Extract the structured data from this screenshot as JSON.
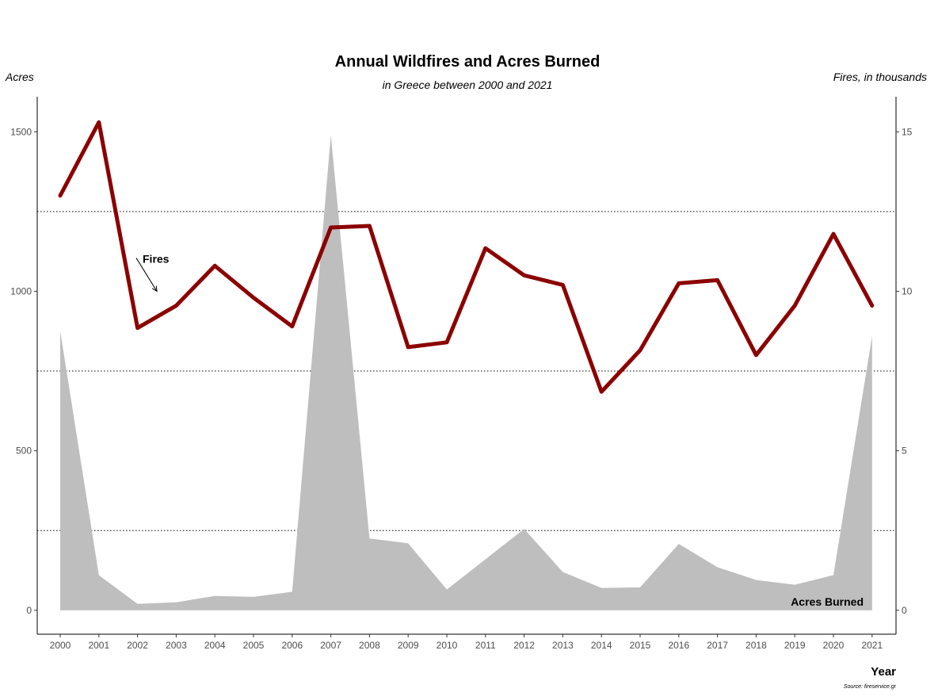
{
  "chart_data": {
    "type": "line",
    "title": "Annual Wildfires and Acres Burned",
    "subtitle": "in Greece between 2000 and 2021",
    "ylabel_left": "Acres",
    "ylabel_right": "Fires, in thousands",
    "xlabel": "Year",
    "caption": "Source: fireservice.gr",
    "x": [
      2000,
      2001,
      2002,
      2003,
      2004,
      2005,
      2006,
      2007,
      2008,
      2009,
      2010,
      2011,
      2012,
      2013,
      2014,
      2015,
      2016,
      2017,
      2018,
      2019,
      2020,
      2021
    ],
    "ylim_left": [
      -75,
      1610
    ],
    "ylim_right": [
      -0.75,
      16.1
    ],
    "yticks_left": [
      0,
      500,
      1000,
      1500
    ],
    "yticks_right": [
      0,
      5,
      10,
      15
    ],
    "gridlines_left": [
      250,
      750,
      1250
    ],
    "grid": "dotted horizontal lines",
    "series": [
      {
        "name": "Acres Burned",
        "axis": "left",
        "kind": "area",
        "color": "#bebebe",
        "values": [
          875,
          110,
          20,
          25,
          45,
          42,
          58,
          1490,
          225,
          210,
          65,
          160,
          255,
          120,
          70,
          72,
          208,
          135,
          95,
          80,
          110,
          860
        ]
      },
      {
        "name": "Fires",
        "axis": "right",
        "kind": "line",
        "color": "#8b0000",
        "values": [
          13.0,
          15.3,
          8.85,
          9.55,
          10.8,
          9.8,
          8.9,
          12.0,
          12.05,
          8.25,
          8.4,
          11.35,
          10.5,
          10.2,
          6.85,
          8.15,
          10.25,
          10.35,
          8.0,
          9.55,
          11.8,
          9.55
        ]
      }
    ],
    "annotations": [
      {
        "text": "Fires",
        "target_year": 2002.5,
        "target_value": 10.0,
        "axis": "right"
      },
      {
        "text": "Acres Burned",
        "position": "bottom-right"
      }
    ]
  }
}
